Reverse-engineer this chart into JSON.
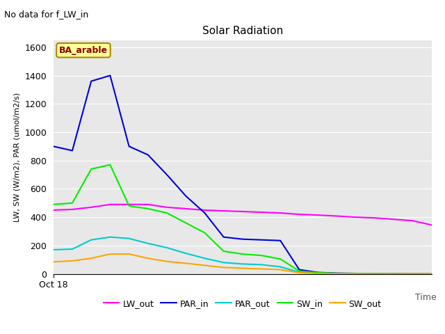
{
  "title": "Solar Radiation",
  "subtitle": "No data for f_LW_in",
  "xlabel": "Time",
  "ylabel": "LW, SW (W/m2), PAR (umol/m2/s)",
  "legend_label": "BA_arable",
  "ylim": [
    0,
    1650
  ],
  "yticks": [
    0,
    200,
    400,
    600,
    800,
    1000,
    1200,
    1400,
    1600
  ],
  "xticklabel": "Oct 18",
  "plot_bg": "#e8e8e8",
  "fig_bg": "#ffffff",
  "series": {
    "LW_out": {
      "color": "#ff00ff",
      "x": [
        0,
        1,
        2,
        3,
        4,
        5,
        6,
        7,
        8,
        9,
        10,
        11,
        12,
        13,
        14,
        15,
        16,
        17,
        18,
        19,
        20
      ],
      "y": [
        450,
        455,
        470,
        490,
        490,
        490,
        470,
        460,
        450,
        445,
        440,
        435,
        430,
        420,
        415,
        408,
        400,
        395,
        385,
        375,
        345
      ]
    },
    "PAR_in": {
      "color": "#0000dd",
      "x": [
        0,
        1,
        2,
        3,
        4,
        5,
        6,
        7,
        8,
        9,
        10,
        11,
        12,
        13,
        14,
        15,
        16,
        17,
        18,
        19,
        20
      ],
      "y": [
        900,
        870,
        1360,
        1400,
        900,
        840,
        700,
        550,
        430,
        260,
        245,
        240,
        235,
        30,
        10,
        5,
        3,
        2,
        1,
        0,
        0
      ]
    },
    "PAR_out": {
      "color": "#00cccc",
      "x": [
        0,
        1,
        2,
        3,
        4,
        5,
        6,
        7,
        8,
        9,
        10,
        11,
        12,
        13,
        14,
        15,
        16,
        17,
        18,
        19,
        20
      ],
      "y": [
        170,
        175,
        240,
        260,
        250,
        215,
        185,
        145,
        110,
        80,
        70,
        65,
        50,
        12,
        5,
        2,
        1,
        0,
        0,
        0,
        0
      ]
    },
    "SW_in": {
      "color": "#00ee00",
      "x": [
        0,
        1,
        2,
        3,
        4,
        5,
        6,
        7,
        8,
        9,
        10,
        11,
        12,
        13,
        14,
        15,
        16,
        17,
        18,
        19,
        20
      ],
      "y": [
        490,
        500,
        740,
        770,
        480,
        460,
        430,
        360,
        290,
        160,
        140,
        130,
        105,
        20,
        8,
        3,
        2,
        1,
        0,
        0,
        0
      ]
    },
    "SW_out": {
      "color": "#ffa500",
      "x": [
        0,
        1,
        2,
        3,
        4,
        5,
        6,
        7,
        8,
        9,
        10,
        11,
        12,
        13,
        14,
        15,
        16,
        17,
        18,
        19,
        20
      ],
      "y": [
        85,
        92,
        110,
        140,
        140,
        110,
        88,
        75,
        60,
        45,
        40,
        35,
        30,
        8,
        3,
        1,
        0,
        0,
        0,
        0,
        0
      ]
    }
  },
  "legend_series_order": [
    "LW_out",
    "PAR_in",
    "PAR_out",
    "SW_in",
    "SW_out"
  ],
  "title_fontsize": 11,
  "subtitle_fontsize": 9,
  "ylabel_fontsize": 8,
  "tick_fontsize": 9,
  "legend_fontsize": 9,
  "ba_label_color": "#8b0000",
  "ba_box_facecolor": "#ffff99",
  "ba_box_edgecolor": "#aa8800"
}
